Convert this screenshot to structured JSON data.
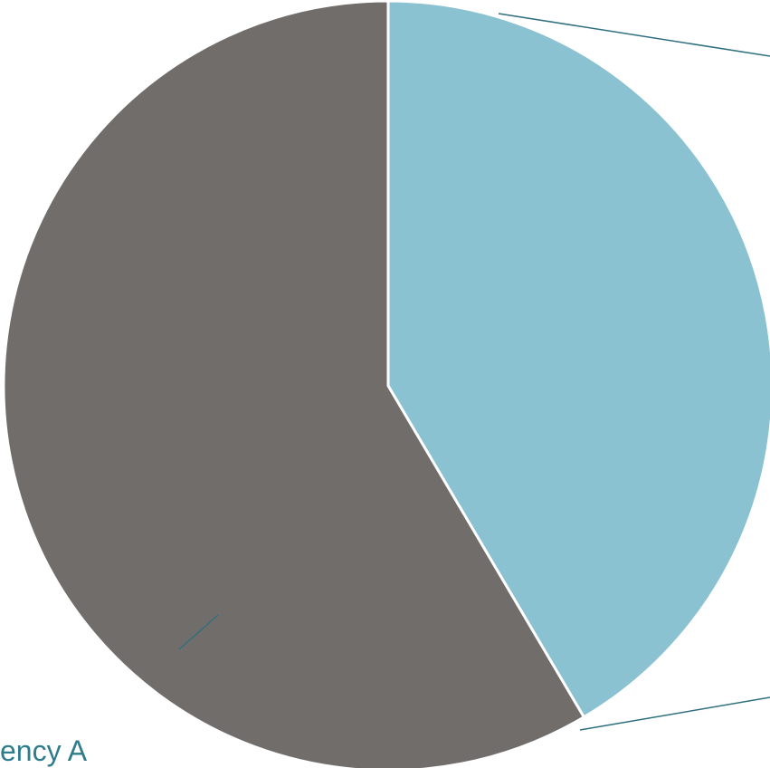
{
  "chart_data": {
    "type": "pie",
    "slices": [
      {
        "label": "",
        "value": 41.5,
        "color": "#8bc2d1"
      },
      {
        "label": "",
        "value": 58.5,
        "color": "#716d6b"
      }
    ],
    "label_fragment": "ency A",
    "label_color": "#2f7d8c",
    "leader_line_color": "#2f6f7f",
    "separator_color": "#ffffff"
  }
}
